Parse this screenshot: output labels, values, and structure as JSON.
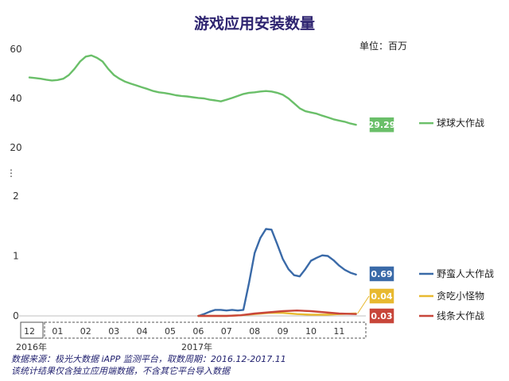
{
  "chart_data": {
    "type": "line",
    "title": "游戏应用安装数量",
    "unit": "单位：百万",
    "y_upper_ticks": [
      "60",
      "40",
      "20"
    ],
    "y_lower_ticks": [
      "2",
      "1",
      "0"
    ],
    "y_break": "⋮",
    "x_ticks": [
      "12",
      "01",
      "02",
      "03",
      "04",
      "05",
      "06",
      "07",
      "08",
      "09",
      "10",
      "11"
    ],
    "year_labels": [
      "2016年",
      "2017年"
    ],
    "upper_panel": {
      "ylim": [
        20,
        60
      ],
      "series": [
        {
          "name": "球球大作战",
          "color": "#6abf69",
          "last_value": "29.29",
          "x": [
            0,
            0.2,
            0.4,
            0.6,
            0.8,
            1.0,
            1.2,
            1.4,
            1.6,
            1.8,
            2.0,
            2.2,
            2.4,
            2.6,
            2.8,
            3.0,
            3.2,
            3.4,
            3.6,
            3.8,
            4.0,
            4.2,
            4.4,
            4.6,
            4.8,
            5.0,
            5.2,
            5.4,
            5.6,
            5.8,
            6.0,
            6.2,
            6.4,
            6.6,
            6.8,
            7.0,
            7.2,
            7.4,
            7.6,
            7.8,
            8.0,
            8.2,
            8.4,
            8.6,
            8.8,
            9.0,
            9.2,
            9.4,
            9.6,
            9.8,
            10.0,
            10.2,
            10.4,
            10.6,
            10.8,
            11.0,
            11.2,
            11.4,
            11.6
          ],
          "y": [
            48.5,
            48.3,
            48.0,
            47.6,
            47.3,
            47.5,
            48.0,
            49.5,
            52.0,
            55.0,
            57.0,
            57.5,
            56.5,
            55.0,
            52.0,
            49.5,
            48.0,
            46.8,
            46.0,
            45.3,
            44.5,
            43.8,
            43.0,
            42.5,
            42.2,
            41.8,
            41.3,
            41.0,
            40.8,
            40.5,
            40.2,
            40.0,
            39.5,
            39.2,
            38.8,
            39.5,
            40.2,
            41.0,
            41.8,
            42.3,
            42.5,
            42.8,
            43.0,
            42.8,
            42.3,
            41.5,
            40.0,
            38.0,
            36.0,
            34.8,
            34.3,
            33.8,
            33.0,
            32.3,
            31.5,
            31.0,
            30.5,
            29.8,
            29.29
          ]
        }
      ]
    },
    "lower_panel": {
      "ylim": [
        0,
        2
      ],
      "series": [
        {
          "name": "野蛮人大作战",
          "color": "#3a6aa8",
          "last_value": "0.69",
          "x": [
            6.0,
            6.2,
            6.4,
            6.6,
            6.8,
            7.0,
            7.2,
            7.4,
            7.6,
            7.8,
            8.0,
            8.2,
            8.4,
            8.6,
            8.8,
            9.0,
            9.2,
            9.4,
            9.6,
            9.8,
            10.0,
            10.2,
            10.4,
            10.6,
            10.8,
            11.0,
            11.2,
            11.4,
            11.6
          ],
          "y": [
            0.0,
            0.03,
            0.07,
            0.1,
            0.1,
            0.09,
            0.1,
            0.09,
            0.1,
            0.55,
            1.05,
            1.3,
            1.45,
            1.44,
            1.2,
            0.95,
            0.78,
            0.68,
            0.66,
            0.78,
            0.92,
            0.97,
            1.01,
            1.0,
            0.93,
            0.84,
            0.77,
            0.72,
            0.69
          ]
        },
        {
          "name": "贪吃小怪物",
          "color": "#e8b930",
          "last_value": "0.04",
          "x": [
            6.0,
            7.0,
            7.5,
            8.0,
            8.5,
            9.0,
            9.5,
            10.0,
            10.5,
            11.0,
            11.6
          ],
          "y": [
            0.0,
            0.0,
            0.01,
            0.03,
            0.05,
            0.05,
            0.03,
            0.02,
            0.02,
            0.03,
            0.04
          ]
        },
        {
          "name": "线条大作战",
          "color": "#c8463a",
          "last_value": "0.03",
          "x": [
            6.0,
            6.5,
            7.0,
            7.5,
            8.0,
            8.5,
            9.0,
            9.5,
            10.0,
            10.5,
            11.0,
            11.6
          ],
          "y": [
            0.0,
            0.0,
            0.0,
            0.01,
            0.04,
            0.06,
            0.08,
            0.09,
            0.08,
            0.06,
            0.04,
            0.03
          ]
        }
      ]
    },
    "source": "数据来源：极光大数据 iAPP 监测平台，取数周期：2016.12-2017.11",
    "note": "该统计结果仅含独立应用端数据，不含其它平台导入数据"
  }
}
